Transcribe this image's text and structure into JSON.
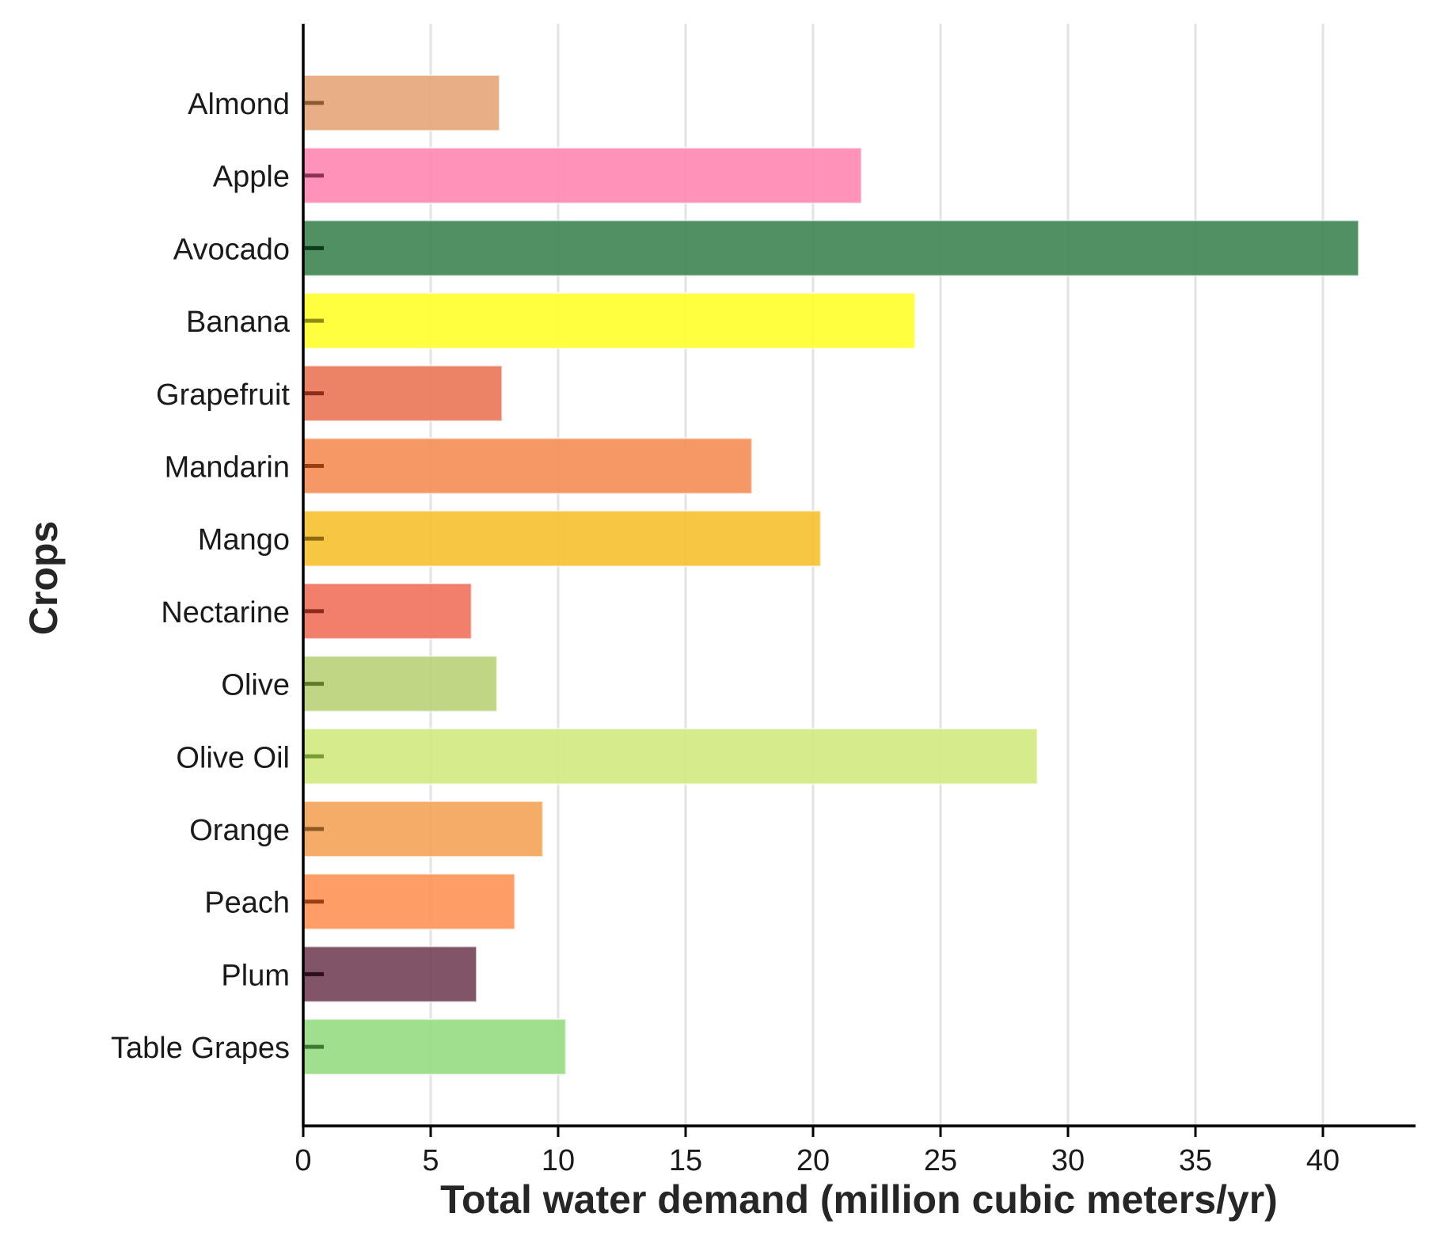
{
  "chart_data": {
    "type": "bar",
    "orientation": "horizontal",
    "title": "",
    "xlabel": "Total water demand (million cubic meters/yr)",
    "ylabel": "Crops",
    "xlim": [
      0,
      43.5
    ],
    "xticks": [
      0,
      5,
      10,
      15,
      20,
      25,
      30,
      35,
      40
    ],
    "grid": "vertical",
    "categories": [
      "Almond",
      "Apple",
      "Avocado",
      "Banana",
      "Grapefruit",
      "Mandarin",
      "Mango",
      "Nectarine",
      "Olive",
      "Olive Oil",
      "Orange",
      "Peach",
      "Plum",
      "Table Grapes"
    ],
    "values": [
      7.7,
      21.9,
      41.4,
      24.0,
      7.8,
      17.6,
      20.3,
      6.6,
      7.6,
      28.8,
      9.4,
      8.3,
      6.8,
      10.3
    ],
    "colors": [
      "#e6a679",
      "#ff86b0",
      "#3d8452",
      "#ffff2a",
      "#ea7557",
      "#f58c55",
      "#f6c02e",
      "#f1705c",
      "#b9d277",
      "#d2e97e",
      "#f5a359",
      "#ff9255",
      "#734158",
      "#96dc82"
    ],
    "marker_colors": [
      "#8c5a33",
      "#8a3355",
      "#0e3a1c",
      "#8d8d14",
      "#8c2e1a",
      "#9a3f12",
      "#8d6a10",
      "#8c2a1c",
      "#5e7a2a",
      "#7a9a34",
      "#8f5a22",
      "#9a3f12",
      "#2a0e1a",
      "#3e7a36"
    ]
  }
}
